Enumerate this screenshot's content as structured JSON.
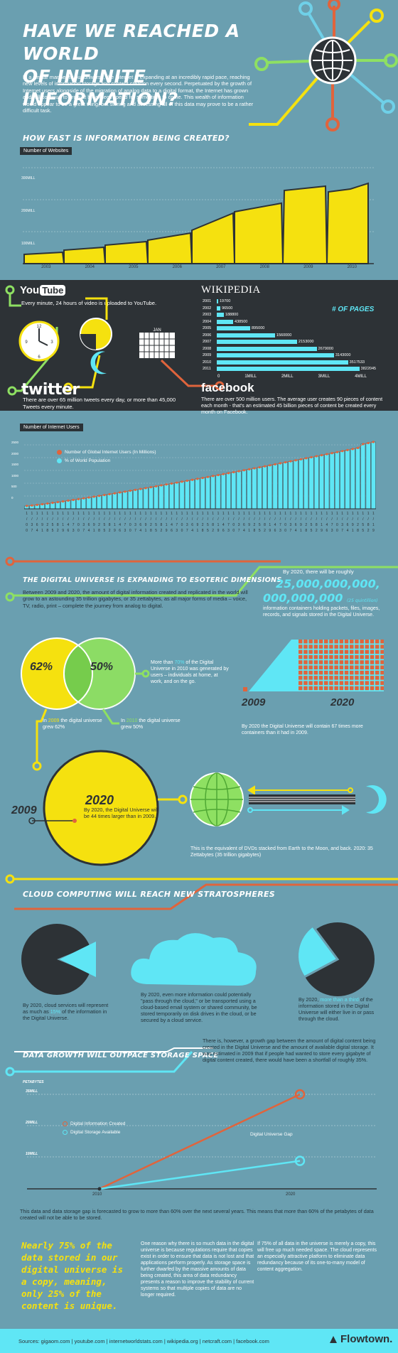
{
  "header": {
    "title_line1": "HAVE WE REACHED A WORLD",
    "title_line2_a": "OF ",
    "title_line2_b": "INFINITE",
    "title_line2_c": " INFORMATION?",
    "intro": "In a similar manner to our universe, the Internet is expanding at an incredibly rapid pace, reaching new levels of information storage and content creation every second. Perpetuated by the growth of Internet users alongside of the migration of analog data to a digital format, the Internet has grown and will continue to grow at breakneck speed for some time to come. This wealth of information would appear to be a great thing, but storing and accessing all of this data may prove to be a rather difficult task."
  },
  "websites": {
    "heading": "HOW FAST IS INFORMATION BEING CREATED?",
    "tag": "Number of Websites",
    "y_ticks": [
      "300MILL",
      "200MILL",
      "100MILL",
      "0"
    ],
    "x_labels": [
      "2003",
      "2004",
      "2005",
      "2006",
      "2007",
      "2008",
      "2009",
      "2010"
    ]
  },
  "social": {
    "youtube_logo_a": "You",
    "youtube_logo_b": "Tube",
    "youtube_text": "Every minute, 24 hours of video is uploaded to YouTube.",
    "wiki_logo": "WIKIPEDIA",
    "wiki_label": "# OF PAGES",
    "wiki_years": [
      "2001",
      "2002",
      "2003",
      "2004",
      "2005",
      "2006",
      "2007",
      "2008",
      "2009",
      "2010",
      "2011"
    ],
    "wiki_values": [
      "19700",
      "96500",
      "188800",
      "438500",
      "895000",
      "1560000",
      "2153000",
      "2679000",
      "3143000",
      "3517533",
      "3822045"
    ],
    "wiki_axis": [
      "0",
      "1MILL",
      "2MILL",
      "3MILL",
      "4MILL"
    ],
    "calendar_month": "JAN",
    "twitter_logo": "twitter",
    "twitter_text": "There are over 65 million tweets every day, or more than 45,000 Tweets every minute.",
    "facebook_logo": "facebook",
    "facebook_text": "There are over 500 million users. The average user creates 90 pieces of content each month - that's an estimated 45 billion pieces of content be created every month on Facebook."
  },
  "users": {
    "tag": "Number of Internet Users",
    "legend_1": "Number of Global Internet Users (In Millions)",
    "legend_2": "% of World Population",
    "y_ticks": [
      "2500",
      "2000",
      "1500",
      "1000",
      "500",
      "0"
    ]
  },
  "digital": {
    "heading": "THE DIGITAL UNIVERSE IS EXPANDING TO ESOTERIC DIMENSIONS",
    "text": "Between 2009 and 2020, the amount of digital information created and replicated in the world will grow to an astounding 35 trillion gigabytes, or 35 zettabytes, as all major forms of media – voice, TV, radio, print – complete the journey from analog to digital.",
    "roughly": "By 2020, there will be roughly",
    "big1": "25,000,000,000,",
    "big2": "000,000,000",
    "big_small": "(25 quintillion)",
    "big_text": "information containers holding packets, files, images, records, and signals stored in the Digital Universe.",
    "pct62": "62%",
    "pct50": "50%",
    "more_than_a": "More than ",
    "more_than_b": "70%",
    "more_than_c": " of the Digital Universe in 2010 was generated by users – individuals at home, at work, and on the go.",
    "in2009_a": "In ",
    "in2009_b": "2009",
    "in2009_c": " the digital universe grew 62%",
    "in2010_a": "In ",
    "in2010_b": "2010",
    "in2010_c": " the digital universe grew 50%",
    "year_2009": "2009",
    "year_2020": "2020",
    "containers_text": "By 2020 the Digital Universe will contain 67 times more containers than it had in 2009.",
    "circle_year": "2020",
    "circle_text": "By 2020, the Digital Universe will be 44 times larger than in 2009.",
    "small_2009": "2009",
    "dvd_text": "This is the equivalent of DVDs stacked from Earth to the Moon, and back. 2020: 35 Zettabytes (35 trillion gigabytes)"
  },
  "cloud": {
    "heading": "CLOUD COMPUTING WILL REACH NEW STRATOSPHERES",
    "left_a": "By 2020, cloud services will represent as much as ",
    "left_b": "15%",
    "left_c": " of the information in the Digital Universe.",
    "mid": "By 2020, even more information could potentially \"pass through the cloud,\" or be transported using a cloud-based email system or shared community, be stored temporarily on disk drives in the cloud, or be secured by a cloud service.",
    "right_a": "By 2020, ",
    "right_b": "more than a third",
    "right_c": " of the information stored in the Digital Universe will either live in or pass through the cloud."
  },
  "storage": {
    "heading": "DATA GROWTH WILL OUTPACE STORAGE SPACE",
    "text": "There is, however, a growth gap between the amount of digital content being created in the Digital Universe and the amount of available digital storage. It was estimated in 2009 that if people had wanted to store every gigabyte of digital content created, there would have been a shortfall of roughly 35%.",
    "y_unit": "PETABYTES",
    "y_ticks": [
      "35MILL",
      "20MILL",
      "10MILL"
    ],
    "legend_1": "Digital Information Created",
    "legend_2": "Digital Storage Available",
    "gap": "Digital Universe Gap",
    "x_2010": "2010",
    "x_2020": "2020",
    "forecast": "This data and data storage gap is forecasted to grow to more than 60% over the next several years. This means that more than 60% of the petabytes of data created will not be able to be stored."
  },
  "bottom": {
    "quote": "Nearly 75% of the data stored in our digital universe is a copy, meaning, only 25% of the content is unique.",
    "col1": "One reason why there is so much data in the digital universe is because regulations require that copies exist in order to ensure that data is not lost and that applications perform properly. As storage space is further dwarfed by the massive amounts of data being created, this area of data redundancy presents a reason to improve the stability of current systems so that multiple copies of data are no longer required.",
    "col2": "If 75% of all data in the universe is merely a copy, this will free up much needed space. The cloud represents an especially attractive platform to eliminate data redundancy because of its one-to-many model of content aggregation."
  },
  "footer": {
    "sources": "Sources: gigaom.com | youtube.com | internetworldstats.com | wikipedia.org | netcraft.com | facebook.com",
    "brand": "Flowtown."
  },
  "chart_data": [
    {
      "type": "area",
      "tag": "Number of Websites",
      "x": [
        "2003",
        "2004",
        "2005",
        "2006",
        "2007",
        "2008",
        "2009",
        "2010"
      ],
      "ylim": [
        0,
        300
      ],
      "y_unit": "MILL",
      "values": [
        40,
        48,
        62,
        80,
        120,
        160,
        220,
        230
      ]
    },
    {
      "type": "bar",
      "tag": "Number of Internet Users",
      "legend": [
        "Number of Global Internet Users (In Millions)",
        "% of World Population"
      ],
      "ylim": [
        0,
        2500
      ]
    },
    {
      "type": "bar",
      "title": "# OF PAGES",
      "categories": [
        "2001",
        "2002",
        "2003",
        "2004",
        "2005",
        "2006",
        "2007",
        "2008",
        "2009",
        "2010",
        "2011"
      ],
      "values": [
        19700,
        96500,
        188800,
        438500,
        895000,
        1560000,
        2153000,
        2679000,
        3143000,
        3517533,
        3822045
      ],
      "xlim": [
        0,
        4000000
      ]
    },
    {
      "type": "line",
      "y_unit": "PETABYTES",
      "x": [
        "2010",
        "2020"
      ],
      "series": [
        {
          "name": "Digital Information Created",
          "values": [
            0,
            35
          ]
        },
        {
          "name": "Digital Storage Available",
          "values": [
            0,
            13
          ]
        }
      ]
    }
  ],
  "colors": {
    "bg": "#6a9fb0",
    "yellow": "#f5e10f",
    "cyan": "#5fe6f5",
    "green": "#8ee062",
    "orange": "#e0643c",
    "dark": "#2d3236"
  }
}
